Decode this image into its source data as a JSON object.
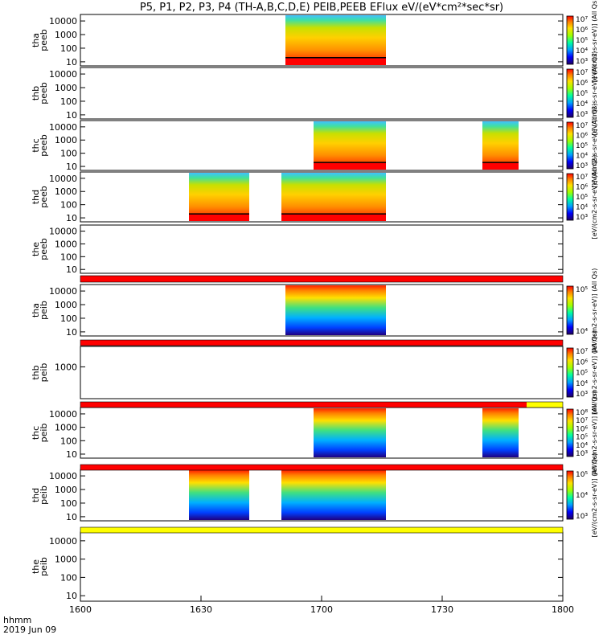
{
  "title": "P5, P1, P2, P3, P4 (TH-A,B,C,D,E) PEIB,PEEB EFlux eV/(eV*cm²*sec*sr)",
  "footer": {
    "line1": "hhmm",
    "line2": "2019 Jun 09"
  },
  "colorbar_label": "[eV/(cm2-s-sr-eV)] (All Qs)",
  "chart_data": {
    "type": "heatmap",
    "x_axis": {
      "label": "",
      "tick_labels": [
        "1600",
        "1630",
        "1700",
        "1730",
        "1800"
      ],
      "range": [
        "16:00",
        "18:00"
      ]
    },
    "y_scale": "log",
    "panels": [
      {
        "ylabel": [
          "tha",
          "peeb"
        ],
        "ticks": [
          "10",
          "100",
          "1000",
          "10000"
        ],
        "ylim": [
          5,
          30000
        ],
        "coverage": [
          [
            "16:51",
            "17:16"
          ]
        ],
        "colorbar_ticks": [
          "10³",
          "10⁴",
          "10⁵",
          "10⁶",
          "10⁷"
        ]
      },
      {
        "ylabel": [
          "thb",
          "peeb"
        ],
        "ticks": [
          "10",
          "100",
          "1000",
          "10000"
        ],
        "ylim": [
          5,
          30000
        ],
        "coverage": [],
        "colorbar_ticks": [
          "10³",
          "10⁴",
          "10⁵",
          "10⁶",
          "10⁷"
        ]
      },
      {
        "ylabel": [
          "thc",
          "peeb"
        ],
        "ticks": [
          "10",
          "100",
          "1000",
          "10000"
        ],
        "ylim": [
          5,
          30000
        ],
        "coverage": [
          [
            "16:58",
            "17:16"
          ],
          [
            "17:40",
            "17:49"
          ]
        ],
        "colorbar_ticks": [
          "10³",
          "10⁴",
          "10⁵",
          "10⁶",
          "10⁷"
        ]
      },
      {
        "ylabel": [
          "thd",
          "peeb"
        ],
        "ticks": [
          "10",
          "100",
          "1000",
          "10000"
        ],
        "ylim": [
          5,
          30000
        ],
        "coverage": [
          [
            "16:27",
            "16:42"
          ],
          [
            "16:50",
            "17:16"
          ]
        ],
        "colorbar_ticks": [
          "10³",
          "10⁴",
          "10⁵",
          "10⁶",
          "10⁷"
        ]
      },
      {
        "ylabel": [
          "the",
          "peeb"
        ],
        "ticks": [
          "10",
          "100",
          "1000",
          "10000"
        ],
        "ylim": [
          5,
          30000
        ],
        "coverage": [],
        "colorbar_ticks": []
      },
      {
        "ylabel": [
          "tha",
          "peib"
        ],
        "ticks": [
          "10",
          "100",
          "1000",
          "10000"
        ],
        "ylim": [
          5,
          30000
        ],
        "coverage": [
          [
            "16:51",
            "17:16"
          ]
        ],
        "colorbar_ticks": [
          "10⁴",
          "10⁵"
        ]
      },
      {
        "ylabel": [
          "thb",
          "peib"
        ],
        "ticks": [
          "1000"
        ],
        "ylim": [
          5,
          30000
        ],
        "coverage": [],
        "colorbar_ticks": [
          "10³",
          "10⁴",
          "10⁵",
          "10⁶",
          "10⁷"
        ]
      },
      {
        "ylabel": [
          "thc",
          "peib"
        ],
        "ticks": [
          "10",
          "100",
          "1000",
          "10000"
        ],
        "ylim": [
          5,
          30000
        ],
        "coverage": [
          [
            "16:58",
            "17:16"
          ],
          [
            "17:40",
            "17:49"
          ]
        ],
        "colorbar_ticks": [
          "10³",
          "10⁴",
          "10⁵",
          "10⁶",
          "10⁷",
          "10⁸"
        ]
      },
      {
        "ylabel": [
          "thd",
          "peib"
        ],
        "ticks": [
          "10",
          "100",
          "1000",
          "10000"
        ],
        "ylim": [
          5,
          30000
        ],
        "coverage": [
          [
            "16:27",
            "16:42"
          ],
          [
            "16:50",
            "17:16"
          ]
        ],
        "colorbar_ticks": [
          "10³",
          "10⁴",
          "10⁵"
        ]
      },
      {
        "ylabel": [
          "the",
          "peib"
        ],
        "ticks": [
          "10",
          "100",
          "1000",
          "10000"
        ],
        "ylim": [
          5,
          30000
        ],
        "coverage": [],
        "colorbar_ticks": []
      }
    ],
    "status_bars": [
      {
        "after_panel": 4,
        "color": "#ff0000"
      },
      {
        "after_panel": 5,
        "color": "#ff0000"
      },
      {
        "after_panel": 6,
        "color": "#ff0000",
        "tail_color": "#ffff00"
      },
      {
        "after_panel": 7,
        "color": "#ff0000"
      },
      {
        "after_panel": 8,
        "color": "#ffff00"
      }
    ]
  }
}
